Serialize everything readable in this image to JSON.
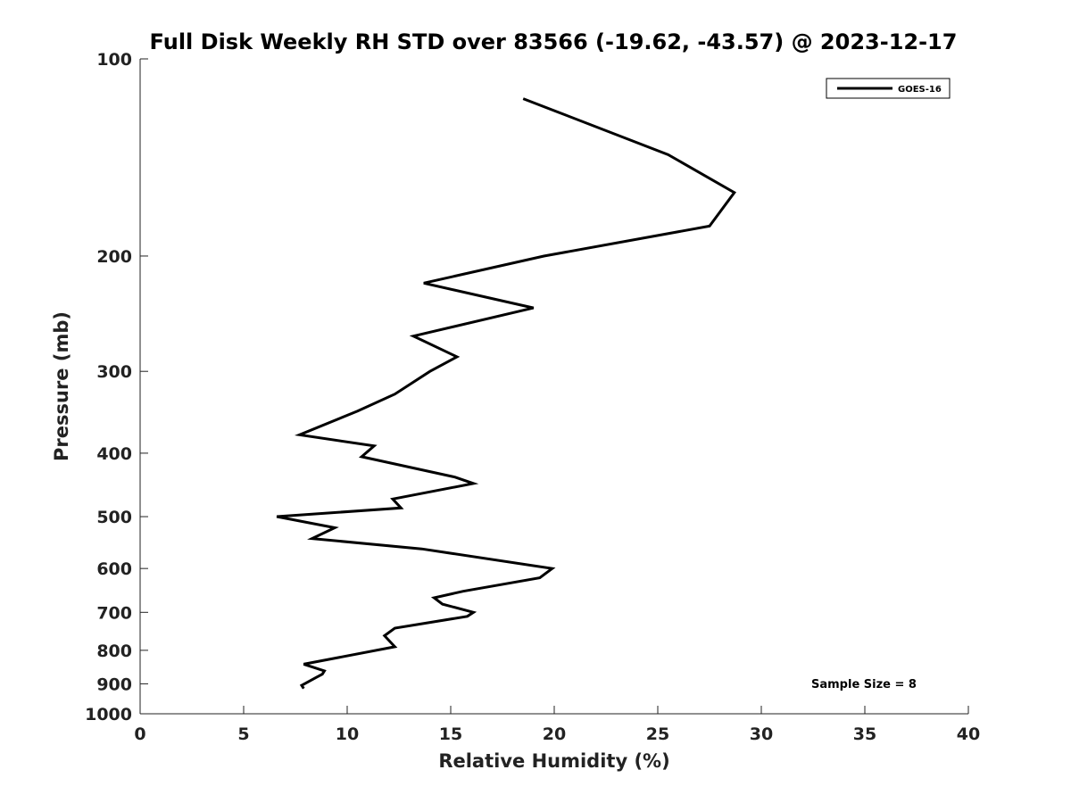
{
  "chart_data": {
    "type": "line",
    "title": "Full Disk Weekly RH STD over 83566 (-19.62, -43.57) @ 2023-12-17",
    "xlabel": "Relative Humidity (%)",
    "ylabel": "Pressure (mb)",
    "xlim": [
      0,
      40
    ],
    "ylim": [
      1000,
      100
    ],
    "yscale": "log",
    "grid": false,
    "legend_position": "top-right",
    "x_ticks": [
      0,
      5,
      10,
      15,
      20,
      25,
      30,
      35,
      40
    ],
    "x_tick_labels": [
      "0",
      "5",
      "10",
      "15",
      "20",
      "25",
      "30",
      "35",
      "40"
    ],
    "y_ticks": [
      100,
      200,
      300,
      400,
      500,
      600,
      700,
      800,
      900,
      1000
    ],
    "y_tick_labels": [
      "100",
      "200",
      "300",
      "400",
      "500",
      "600",
      "700",
      "800",
      "900",
      "1000"
    ],
    "annotation": "Sample Size = 8",
    "series": [
      {
        "name": "GOES-16",
        "color": "#000000",
        "points": [
          [
            18.5,
            115
          ],
          [
            25.5,
            140
          ],
          [
            28.7,
            160
          ],
          [
            27.5,
            180
          ],
          [
            19.5,
            200
          ],
          [
            13.7,
            220
          ],
          [
            19.0,
            240
          ],
          [
            13.2,
            265
          ],
          [
            15.3,
            285
          ],
          [
            14.0,
            300
          ],
          [
            12.3,
            325
          ],
          [
            10.5,
            345
          ],
          [
            7.7,
            375
          ],
          [
            11.3,
            390
          ],
          [
            10.7,
            405
          ],
          [
            15.2,
            435
          ],
          [
            16.1,
            445
          ],
          [
            12.2,
            470
          ],
          [
            12.6,
            485
          ],
          [
            6.6,
            500
          ],
          [
            9.4,
            520
          ],
          [
            8.3,
            540
          ],
          [
            13.6,
            560
          ],
          [
            19.9,
            600
          ],
          [
            19.3,
            620
          ],
          [
            15.6,
            650
          ],
          [
            14.2,
            665
          ],
          [
            14.6,
            680
          ],
          [
            16.1,
            700
          ],
          [
            15.8,
            710
          ],
          [
            12.3,
            740
          ],
          [
            11.8,
            760
          ],
          [
            12.3,
            790
          ],
          [
            7.9,
            840
          ],
          [
            8.9,
            860
          ],
          [
            8.8,
            870
          ],
          [
            8.5,
            880
          ],
          [
            7.8,
            905
          ],
          [
            7.9,
            915
          ]
        ]
      }
    ]
  }
}
